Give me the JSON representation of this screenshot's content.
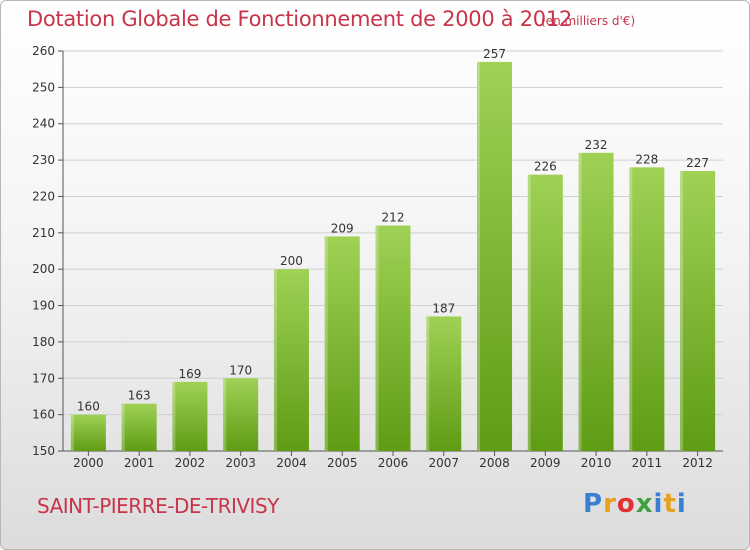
{
  "header": {
    "title": "Dotation Globale de Fonctionnement de 2000 à 2012",
    "subtitle": "(en milliers d'€)"
  },
  "footer": {
    "commune": "SAINT-PIERRE-DE-TRIVISY",
    "logo_letters": [
      "P",
      "r",
      "o",
      "x",
      "i",
      "t",
      "i"
    ]
  },
  "colors": {
    "title": "#c8344a",
    "bar_top": "#9fd155",
    "bar_bottom": "#5f9c14",
    "grid": "#d0d0d0"
  },
  "chart_data": {
    "type": "bar",
    "categories": [
      "2000",
      "2001",
      "2002",
      "2003",
      "2004",
      "2005",
      "2006",
      "2007",
      "2008",
      "2009",
      "2010",
      "2011",
      "2012"
    ],
    "values": [
      160,
      163,
      169,
      170,
      200,
      209,
      212,
      187,
      257,
      226,
      232,
      228,
      227
    ],
    "ylim": [
      150,
      260
    ],
    "yticks": [
      150,
      160,
      170,
      180,
      190,
      200,
      210,
      220,
      230,
      240,
      250,
      260
    ],
    "grid": true,
    "legend": "none"
  }
}
